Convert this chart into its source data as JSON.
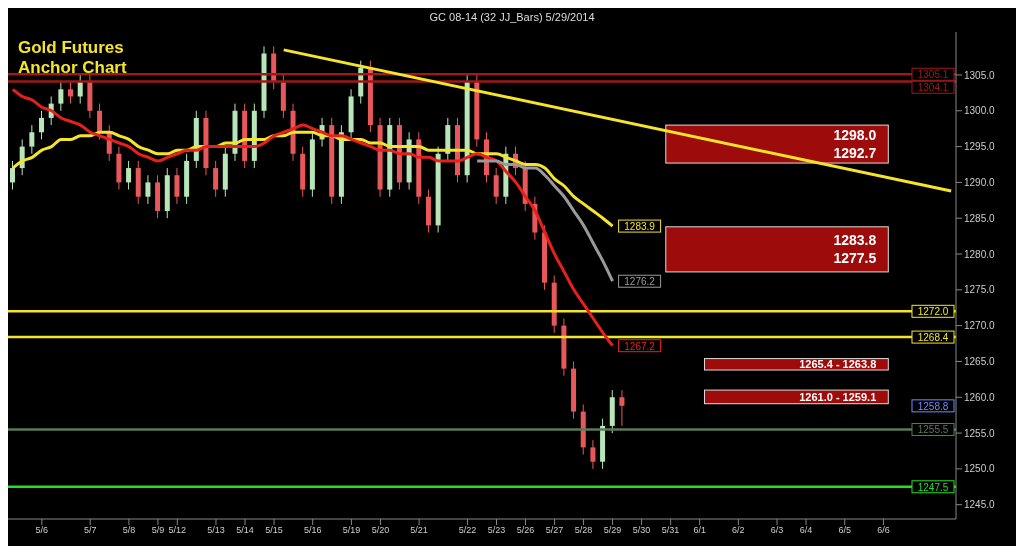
{
  "chart_data": {
    "type": "candlestick",
    "title": "GC 08-14 (32 JJ_Bars)  5/29/2014",
    "categories": [
      null,
      null,
      null,
      "5/6",
      null,
      null,
      null,
      null,
      "5/7",
      null,
      null,
      null,
      "5/8",
      null,
      null,
      "5/9",
      null,
      "5/12",
      null,
      null,
      null,
      "5/13",
      null,
      null,
      "5/14",
      null,
      null,
      "5/15",
      null,
      null,
      null,
      "5/16",
      null,
      null,
      null,
      "5/19",
      null,
      null,
      "5/20",
      null,
      null,
      null,
      "5/21",
      null,
      null,
      null,
      null,
      "5/22",
      null,
      null,
      "5/23",
      null,
      null,
      "5/26",
      null,
      null,
      "5/27",
      null,
      null,
      "5/28",
      null,
      null,
      "5/29",
      null,
      null,
      "5/30",
      null,
      null,
      "5/31",
      null,
      null,
      "6/1",
      null,
      null,
      null,
      "6/2",
      null,
      null,
      null,
      "6/3",
      null,
      null,
      "6/4",
      null,
      null,
      null,
      "6/5",
      null,
      null,
      null,
      "6/6",
      null,
      null,
      null,
      null,
      null,
      null,
      null
    ],
    "ohlc": [
      [
        1290,
        1293,
        1289,
        1292
      ],
      [
        1292,
        1296,
        1291,
        1295
      ],
      [
        1295,
        1298,
        1294,
        1297
      ],
      [
        1297,
        1300,
        1296,
        1299
      ],
      [
        1299,
        1302,
        1298,
        1301
      ],
      [
        1301,
        1304,
        1300,
        1303
      ],
      [
        1303,
        1304,
        1301,
        1302
      ],
      [
        1302,
        1305,
        1301,
        1304
      ],
      [
        1304,
        1305,
        1299,
        1300
      ],
      [
        1300,
        1301,
        1296,
        1297
      ],
      [
        1297,
        1298,
        1293,
        1294
      ],
      [
        1294,
        1295,
        1289,
        1290
      ],
      [
        1290,
        1293,
        1289,
        1292
      ],
      [
        1292,
        1293,
        1287,
        1288
      ],
      [
        1288,
        1291,
        1287,
        1290
      ],
      [
        1290,
        1291,
        1285,
        1286
      ],
      [
        1286,
        1292,
        1285,
        1291
      ],
      [
        1291,
        1292,
        1287,
        1288
      ],
      [
        1288,
        1294,
        1287,
        1293
      ],
      [
        1293,
        1300,
        1292,
        1299
      ],
      [
        1299,
        1300,
        1291,
        1292
      ],
      [
        1292,
        1293,
        1288,
        1289
      ],
      [
        1289,
        1295,
        1288,
        1294
      ],
      [
        1294,
        1301,
        1293,
        1300
      ],
      [
        1300,
        1301,
        1292,
        1293
      ],
      [
        1293,
        1301,
        1292,
        1300
      ],
      [
        1300,
        1309,
        1299,
        1308
      ],
      [
        1308,
        1309,
        1303,
        1304
      ],
      [
        1304,
        1305,
        1299,
        1300
      ],
      [
        1300,
        1301,
        1293,
        1294
      ],
      [
        1294,
        1295,
        1288,
        1289
      ],
      [
        1289,
        1297,
        1288,
        1296
      ],
      [
        1296,
        1299,
        1295,
        1298
      ],
      [
        1298,
        1299,
        1287,
        1288
      ],
      [
        1288,
        1298,
        1287,
        1297
      ],
      [
        1297,
        1303,
        1296,
        1302
      ],
      [
        1302,
        1307,
        1301,
        1306
      ],
      [
        1306,
        1307,
        1297,
        1298
      ],
      [
        1298,
        1299,
        1288,
        1289
      ],
      [
        1289,
        1299,
        1288,
        1298
      ],
      [
        1298,
        1299,
        1289,
        1290
      ],
      [
        1290,
        1297,
        1289,
        1296
      ],
      [
        1296,
        1297,
        1287,
        1288
      ],
      [
        1288,
        1289,
        1283,
        1284
      ],
      [
        1284,
        1295,
        1283,
        1294
      ],
      [
        1294,
        1299,
        1293,
        1298
      ],
      [
        1298,
        1299,
        1290,
        1291
      ],
      [
        1291,
        1305,
        1290,
        1304
      ],
      [
        1304,
        1305,
        1295,
        1296
      ],
      [
        1296,
        1297,
        1290,
        1291
      ],
      [
        1291,
        1292,
        1287,
        1288
      ],
      [
        1288,
        1295,
        1287,
        1294
      ],
      [
        1294,
        1295,
        1291,
        1292
      ],
      [
        1292,
        1293,
        1286,
        1287
      ],
      [
        1287,
        1288,
        1282,
        1283
      ],
      [
        1283,
        1284,
        1275,
        1276
      ],
      [
        1276,
        1277,
        1269,
        1270
      ],
      [
        1270,
        1271,
        1263,
        1264
      ],
      [
        1264,
        1265,
        1257,
        1258
      ],
      [
        1258,
        1259,
        1252,
        1253
      ],
      [
        1253,
        1254,
        1250,
        1251
      ],
      [
        1251,
        1257,
        1250,
        1256
      ],
      [
        1256,
        1261,
        1255,
        1260
      ],
      [
        1260,
        1261,
        1256,
        1258.8
      ],
      null,
      null,
      null,
      null,
      null,
      null,
      null,
      null,
      null,
      null,
      null,
      null,
      null,
      null,
      null,
      null,
      null,
      null,
      null,
      null,
      null,
      null,
      null,
      null,
      null,
      null,
      null,
      null,
      null,
      null,
      null,
      null,
      null,
      null
    ],
    "colors": [
      "#b8e6b8",
      "#b8e6b8",
      "#b8e6b8",
      "#b8e6b8",
      "#b8e6b8",
      "#b8e6b8",
      "#e8585a",
      "#b8e6b8",
      "#e8585a",
      "#e8585a",
      "#e8585a",
      "#e8585a",
      "#b8e6b8",
      "#e8585a",
      "#b8e6b8",
      "#e8585a",
      "#b8e6b8",
      "#e8585a",
      "#b8e6b8",
      "#b8e6b8",
      "#e8585a",
      "#e8585a",
      "#b8e6b8",
      "#b8e6b8",
      "#e8585a",
      "#b8e6b8",
      "#b8e6b8",
      "#e8585a",
      "#e8585a",
      "#e8585a",
      "#e8585a",
      "#b8e6b8",
      "#b8e6b8",
      "#e8585a",
      "#b8e6b8",
      "#b8e6b8",
      "#b8e6b8",
      "#e8585a",
      "#e8585a",
      "#b8e6b8",
      "#e8585a",
      "#b8e6b8",
      "#e8585a",
      "#e8585a",
      "#b8e6b8",
      "#b8e6b8",
      "#e8585a",
      "#b8e6b8",
      "#e8585a",
      "#e8585a",
      "#e8585a",
      "#b8e6b8",
      "#e8585a",
      "#e8585a",
      "#e8585a",
      "#e8585a",
      "#e8585a",
      "#e8585a",
      "#e8585a",
      "#e8585a",
      "#e8585a",
      "#b8e6b8",
      "#b8e6b8",
      "#e8585a",
      null,
      null,
      null,
      null,
      null,
      null,
      null,
      null,
      null,
      null,
      null,
      null,
      null,
      null,
      null,
      null,
      null,
      null,
      null,
      null,
      null,
      null,
      null,
      null,
      null,
      null,
      null,
      null,
      null,
      null,
      null,
      null,
      null,
      null
    ],
    "value_labels": [
      null,
      null,
      null,
      null,
      null,
      null,
      null,
      null,
      null,
      null,
      null,
      null,
      null,
      null,
      null,
      null,
      null,
      null,
      null,
      null,
      null,
      null,
      null,
      null,
      null,
      null,
      null,
      null,
      null,
      null,
      null,
      null,
      null,
      null,
      null,
      null,
      null,
      null,
      null,
      null,
      null,
      null,
      null,
      null,
      null,
      null,
      null,
      null,
      null,
      null,
      null,
      null,
      null,
      null,
      null,
      null,
      null,
      null,
      null,
      null,
      null,
      null,
      null,
      "1258.8",
      null,
      null,
      null,
      null,
      null,
      null,
      null,
      null,
      null,
      null,
      null,
      null,
      null,
      null,
      null,
      null,
      null,
      null,
      null,
      null,
      null,
      null,
      null,
      null,
      null,
      null,
      null,
      null,
      null,
      null,
      null,
      null,
      null,
      null
    ],
    "series": [
      {
        "type": "line",
        "color": "#f5e52a",
        "values": [
          1292,
          1293,
          1293.5,
          1294.5,
          1295,
          1296,
          1296,
          1296.5,
          1296.5,
          1297,
          1297,
          1296.5,
          1296,
          1295,
          1294.5,
          1294,
          1294,
          1294.5,
          1294.5,
          1295,
          1295,
          1295,
          1295.5,
          1295.5,
          1296,
          1296,
          1296,
          1296.5,
          1296.5,
          1297,
          1297,
          1297,
          1296.5,
          1296.5,
          1296,
          1296,
          1296,
          1295.5,
          1295.5,
          1295,
          1295,
          1295,
          1295,
          1294.5,
          1294.5,
          1294.5,
          1294.5,
          1294.5,
          1294,
          1294,
          1294,
          1293.5,
          1293,
          1292.5,
          1292.5,
          1292,
          1290.5,
          1289.5,
          1288,
          1287,
          1286,
          1285,
          1283.9,
          null,
          null,
          null,
          null,
          null,
          null,
          null,
          null,
          null,
          null,
          null,
          null,
          null,
          null,
          null,
          null,
          null,
          null,
          null,
          null,
          null,
          null,
          null,
          null,
          null,
          null,
          null,
          null,
          null,
          null,
          null,
          null,
          null,
          null,
          null
        ],
        "value_labels": [
          null,
          null,
          null,
          null,
          null,
          null,
          null,
          null,
          null,
          null,
          null,
          null,
          null,
          null,
          null,
          null,
          null,
          null,
          null,
          null,
          null,
          null,
          null,
          null,
          null,
          null,
          null,
          null,
          null,
          null,
          null,
          null,
          null,
          null,
          null,
          null,
          null,
          null,
          null,
          null,
          null,
          null,
          null,
          null,
          null,
          null,
          null,
          null,
          null,
          null,
          null,
          null,
          null,
          null,
          null,
          null,
          null,
          null,
          null,
          null,
          null,
          null,
          "1283.9",
          null,
          null,
          null,
          null,
          null,
          null,
          null,
          null,
          null,
          null,
          null,
          null,
          null,
          null,
          null,
          null,
          null,
          null,
          null,
          null,
          null,
          null,
          null,
          null,
          null,
          null,
          null,
          null,
          null,
          null,
          null,
          null,
          null,
          null,
          null
        ]
      },
      {
        "type": "line",
        "color": "#e8201c",
        "values": [
          1303,
          1302,
          1301.5,
          1300.5,
          1300,
          1299,
          1298.5,
          1298,
          1297,
          1296.5,
          1296,
          1295.5,
          1295,
          1294,
          1293.5,
          1293,
          1293.5,
          1294,
          1294.5,
          1294.5,
          1295,
          1295,
          1295,
          1295,
          1295,
          1295,
          1295.5,
          1296.5,
          1297,
          1297.5,
          1298,
          1297.5,
          1297,
          1296.5,
          1296.5,
          1296,
          1295.5,
          1295,
          1294.5,
          1294.5,
          1294,
          1294,
          1293.5,
          1293.5,
          1293,
          1293,
          1293,
          1293.5,
          1294,
          1293.5,
          1293,
          1291.5,
          1290,
          1288,
          1286,
          1283,
          1280,
          1277.5,
          1275,
          1273,
          1271,
          1269,
          1267.2,
          null,
          null,
          null,
          null,
          null,
          null,
          null,
          null,
          null,
          null,
          null,
          null,
          null,
          null,
          null,
          null,
          null,
          null,
          null,
          null,
          null,
          null,
          null,
          null,
          null,
          null,
          null,
          null,
          null,
          null,
          null,
          null,
          null,
          null,
          null
        ],
        "value_labels": [
          null,
          null,
          null,
          null,
          null,
          null,
          null,
          null,
          null,
          null,
          null,
          null,
          null,
          null,
          null,
          null,
          null,
          null,
          null,
          null,
          null,
          null,
          null,
          null,
          null,
          null,
          null,
          null,
          null,
          null,
          null,
          null,
          null,
          null,
          null,
          null,
          null,
          null,
          null,
          null,
          null,
          null,
          null,
          null,
          null,
          null,
          null,
          null,
          null,
          null,
          null,
          null,
          null,
          null,
          null,
          null,
          null,
          null,
          null,
          null,
          null,
          null,
          "1267.2",
          null,
          null,
          null,
          null,
          null,
          null,
          null,
          null,
          null,
          null,
          null,
          null,
          null,
          null,
          null,
          null,
          null,
          null,
          null,
          null,
          null,
          null,
          null,
          null,
          null,
          null,
          null,
          null,
          null,
          null,
          null,
          null,
          null,
          null,
          null
        ]
      },
      {
        "type": "line",
        "color": "#9a9a9a",
        "values": [
          null,
          null,
          null,
          null,
          null,
          null,
          null,
          null,
          null,
          null,
          null,
          null,
          null,
          null,
          null,
          null,
          null,
          null,
          null,
          null,
          null,
          null,
          null,
          null,
          null,
          null,
          null,
          null,
          null,
          null,
          null,
          null,
          null,
          null,
          null,
          null,
          null,
          null,
          null,
          null,
          null,
          null,
          null,
          null,
          null,
          null,
          null,
          null,
          1293,
          1293,
          1293,
          1292.5,
          1292.5,
          1292,
          1292,
          1291,
          1289.5,
          1288,
          1286,
          1284,
          1281.5,
          1279,
          1276.2,
          null,
          null,
          null,
          null,
          null,
          null,
          null,
          null,
          null,
          null,
          null,
          null,
          null,
          null,
          null,
          null,
          null,
          null,
          null,
          null,
          null,
          null,
          null,
          null,
          null,
          null,
          null,
          null,
          null,
          null,
          null,
          null,
          null,
          null,
          null
        ],
        "value_labels": [
          null,
          null,
          null,
          null,
          null,
          null,
          null,
          null,
          null,
          null,
          null,
          null,
          null,
          null,
          null,
          null,
          null,
          null,
          null,
          null,
          null,
          null,
          null,
          null,
          null,
          null,
          null,
          null,
          null,
          null,
          null,
          null,
          null,
          null,
          null,
          null,
          null,
          null,
          null,
          null,
          null,
          null,
          null,
          null,
          null,
          null,
          null,
          null,
          null,
          null,
          null,
          null,
          null,
          null,
          null,
          null,
          null,
          null,
          null,
          null,
          null,
          null,
          "1276.2",
          null,
          null,
          null,
          null,
          null,
          null,
          null,
          null,
          null,
          null,
          null,
          null,
          null,
          null,
          null,
          null,
          null,
          null,
          null,
          null,
          null,
          null,
          null,
          null,
          null,
          null,
          null,
          null,
          null,
          null,
          null,
          null,
          null,
          null,
          null
        ]
      },
      {
        "type": "line",
        "color": "#f5e52a",
        "values": [
          null,
          null,
          null,
          null,
          null,
          null,
          null,
          null,
          null,
          null,
          null,
          null,
          null,
          null,
          null,
          null,
          null,
          null,
          null,
          null,
          null,
          null,
          null,
          null,
          null,
          null,
          null,
          null,
          1308.5,
          null,
          null,
          null,
          null,
          null,
          null,
          null,
          null,
          null,
          null,
          null,
          null,
          null,
          null,
          null,
          null,
          null,
          null,
          null,
          null,
          null,
          null,
          null,
          null,
          null,
          null,
          null,
          null,
          null,
          null,
          null,
          null,
          null,
          null,
          null,
          null,
          null,
          null,
          null,
          null,
          null,
          null,
          null,
          null,
          null,
          null,
          null,
          null,
          null,
          null,
          null,
          null,
          null,
          null,
          null,
          null,
          null,
          null,
          null,
          null,
          null,
          null,
          null,
          null,
          null,
          null,
          null,
          null,
          1288.8
        ]
      }
    ],
    "ylim": [
      1243,
      1311
    ],
    "yticks": [
      {
        "value": 1245,
        "label": "1245.0"
      },
      {
        "value": 1250,
        "label": "1250.0"
      },
      {
        "value": 1255,
        "label": "1255.0"
      },
      {
        "value": 1260,
        "label": "1260.0"
      },
      {
        "value": 1265,
        "label": "1265.0"
      },
      {
        "value": 1270,
        "label": "1270.0"
      },
      {
        "value": 1275,
        "label": "1275.0"
      },
      {
        "value": 1280,
        "label": "1280.0"
      },
      {
        "value": 1285,
        "label": "1285.0"
      },
      {
        "value": 1290,
        "label": "1290.0"
      },
      {
        "value": 1295,
        "label": "1295.0"
      },
      {
        "value": 1300,
        "label": "1300.0"
      },
      {
        "value": 1305,
        "label": "1305.0"
      }
    ],
    "ref_lines": [
      {
        "axis": "y",
        "value": 1305.1,
        "label": "1305.1",
        "color": "#a01818"
      },
      {
        "axis": "y",
        "value": 1304.1,
        "label": "1304.1",
        "color": "#a01818"
      },
      {
        "axis": "y",
        "value": 1272.0,
        "label": "1272.0",
        "color": "#f5e52a"
      },
      {
        "axis": "y",
        "value": 1268.4,
        "label": "1268.4",
        "color": "#f5e52a"
      },
      {
        "axis": "y",
        "value": 1255.5,
        "label": "1255.5",
        "color": "#5a7a5a"
      },
      {
        "axis": "y",
        "value": 1247.5,
        "label": "1247.5",
        "color": "#22e022"
      }
    ],
    "bands": [
      {
        "axis": "y",
        "from": 1292.7,
        "to": 1298.0,
        "label": "1298.0\n1292.7",
        "color": "#9e0b0b"
      },
      {
        "axis": "y",
        "from": 1277.5,
        "to": 1283.8,
        "label": "1283.8\n1277.5",
        "color": "#9e0b0b"
      },
      {
        "axis": "y",
        "from": 1263.8,
        "to": 1265.4,
        "label": "1265.4 - 1263.8",
        "color": "#9e0b0b"
      },
      {
        "axis": "y",
        "from": 1259.1,
        "to": 1261.0,
        "label": "1261.0 - 1259.1",
        "color": "#9e0b0b"
      }
    ],
    "annotations": [
      "Gold Futures Anchor Chart"
    ]
  }
}
